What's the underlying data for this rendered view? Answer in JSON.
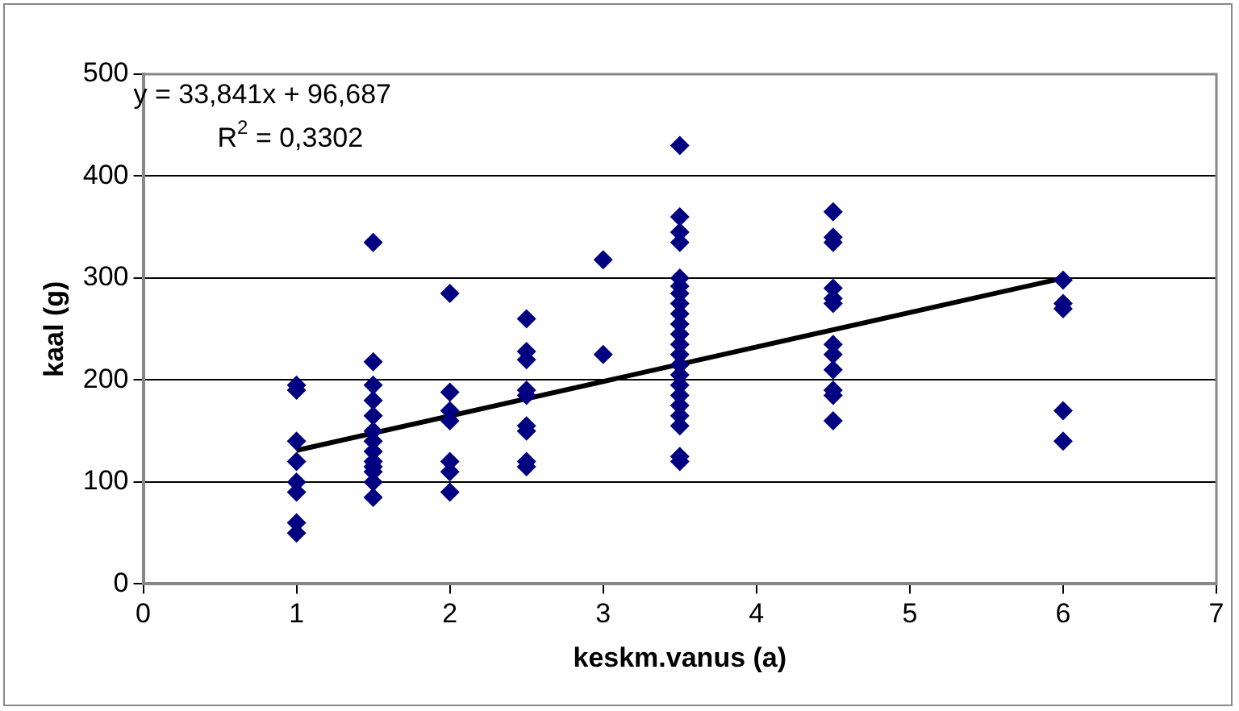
{
  "chart_data": {
    "type": "scatter",
    "xlabel": "keskm.vanus (a)",
    "ylabel": "kaal (g)",
    "xlim": [
      0,
      7
    ],
    "xticks": [
      0,
      1,
      2,
      3,
      4,
      5,
      6,
      7
    ],
    "ylim": [
      0,
      500
    ],
    "yticks": [
      0,
      100,
      200,
      300,
      400,
      500
    ],
    "grid": "y",
    "legend": false,
    "marker": "diamond",
    "annotations": [
      "y = 33,841x + 96,687",
      "R$^{2}$ = 0,3302"
    ],
    "series": [
      {
        "type": "scatter",
        "color": "#000080",
        "x": [
          1,
          1,
          1,
          1,
          1,
          1,
          1,
          1,
          1.5,
          1.5,
          1.5,
          1.5,
          1.5,
          1.5,
          1.5,
          1.5,
          1.5,
          1.5,
          1.5,
          1.5,
          1.5,
          2,
          2,
          2,
          2,
          2,
          2,
          2,
          2.5,
          2.5,
          2.5,
          2.5,
          2.5,
          2.5,
          2.5,
          2.5,
          2.5,
          3,
          3,
          3.5,
          3.5,
          3.5,
          3.5,
          3.5,
          3.5,
          3.5,
          3.5,
          3.5,
          3.5,
          3.5,
          3.5,
          3.5,
          3.5,
          3.5,
          3.5,
          3.5,
          3.5,
          3.5,
          3.5,
          3.5,
          3.5,
          4.5,
          4.5,
          4.5,
          4.5,
          4.5,
          4.5,
          4.5,
          4.5,
          4.5,
          4.5,
          4.5,
          4.5,
          6,
          6,
          6,
          6,
          6
        ],
        "values": [
          195,
          190,
          140,
          120,
          100,
          90,
          60,
          50,
          335,
          218,
          195,
          180,
          165,
          150,
          140,
          130,
          120,
          115,
          110,
          100,
          85,
          285,
          188,
          170,
          160,
          120,
          110,
          90,
          260,
          228,
          220,
          190,
          185,
          155,
          150,
          120,
          115,
          318,
          225,
          430,
          360,
          345,
          335,
          300,
          292,
          285,
          275,
          265,
          255,
          245,
          235,
          225,
          215,
          205,
          195,
          185,
          175,
          165,
          155,
          125,
          120,
          365,
          340,
          335,
          290,
          280,
          275,
          235,
          225,
          210,
          190,
          185,
          160,
          298,
          275,
          270,
          170,
          140
        ]
      },
      {
        "type": "line",
        "color": "#000000",
        "x": [
          1,
          6
        ],
        "values": [
          131,
          300
        ],
        "marker": "none",
        "line_style": "solid"
      }
    ]
  }
}
